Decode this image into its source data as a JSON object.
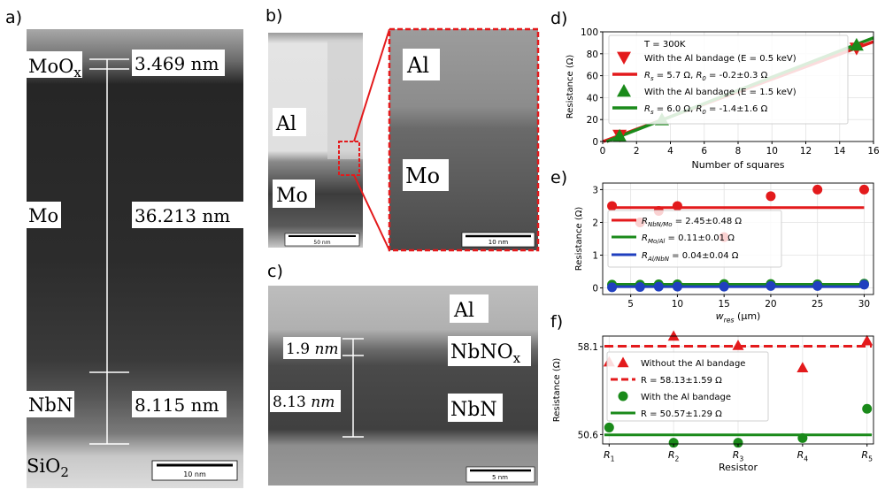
{
  "panels": {
    "a": {
      "label": "a)",
      "layers": [
        {
          "name": "MoO",
          "sub": "x",
          "thickness": "3.469 nm"
        },
        {
          "name": "Mo",
          "sub": "",
          "thickness": "36.213 nm"
        },
        {
          "name": "NbN",
          "sub": "",
          "thickness": "8.115 nm"
        }
      ],
      "substrate": {
        "name": "SiO",
        "sub": "2"
      },
      "scalebar": "10 nm"
    },
    "b": {
      "label": "b)",
      "left_labels": [
        "Al",
        "Mo"
      ],
      "left_scalebar": "50 nm",
      "inset_labels": [
        "Al",
        "Mo"
      ],
      "inset_scalebar": "10 nm"
    },
    "c": {
      "label": "c)",
      "labels": {
        "top": "Al",
        "middle": "NbNO",
        "middle_sub": "x",
        "bottom": "NbN"
      },
      "thick1_value": "1.9 ",
      "thick1_unit": "nm",
      "thick2_value": "8.13 ",
      "thick2_unit": "nm",
      "scalebar": "5 nm"
    }
  },
  "chart_data": [
    {
      "panel": "d)",
      "type": "line",
      "xlabel": "Number of squares",
      "ylabel": "Resistance (Ω)",
      "xlim": [
        0,
        16
      ],
      "ylim": [
        0,
        100
      ],
      "xticks": [
        0,
        2,
        4,
        6,
        8,
        10,
        12,
        14,
        16
      ],
      "yticks": [
        0,
        20,
        40,
        60,
        80,
        100
      ],
      "grid": true,
      "legend_position": "top-left",
      "legend_title": "T = 300K",
      "series": [
        {
          "name": "With the Al bandage (E = 0.5 keV)",
          "kind": "scatter",
          "marker": "triangle-down",
          "color": "#e31a1c",
          "x": [
            1,
            15
          ],
          "y": [
            5.5,
            85
          ]
        },
        {
          "name_prefix": "R",
          "name_sub": "s",
          "name_suffix": " = 5.7 Ω, ",
          "name_prefix2": "R",
          "name_sub2": "0",
          "name_suffix2": " = -0.2±0.3 Ω",
          "kind": "line",
          "color": "#e31a1c",
          "slope": 5.7,
          "intercept": -0.2,
          "x_range": [
            0,
            16
          ]
        },
        {
          "name": "With the Al bandage (E = 1.5 keV)",
          "kind": "scatter",
          "marker": "triangle-up",
          "color": "#1a8a1a",
          "x": [
            1,
            3.5,
            15
          ],
          "y": [
            5,
            20,
            88
          ]
        },
        {
          "name_prefix": "R",
          "name_sub": "s",
          "name_suffix": " = 6.0 Ω, ",
          "name_prefix2": "R",
          "name_sub2": "0",
          "name_suffix2": " = -1.4±1.6 Ω",
          "kind": "line",
          "color": "#1a8a1a",
          "slope": 6.0,
          "intercept": -1.4,
          "x_range": [
            0,
            16
          ]
        }
      ]
    },
    {
      "panel": "e)",
      "type": "scatter",
      "xlabel_prefix": "w",
      "xlabel_sub": "res",
      "xlabel_suffix": " (μm)",
      "ylabel": "Resistance (Ω)",
      "xlim": [
        2,
        31
      ],
      "ylim": [
        -0.2,
        3.2
      ],
      "xticks": [
        5,
        10,
        15,
        20,
        25,
        30
      ],
      "yticks": [
        0,
        1,
        2,
        3
      ],
      "grid": true,
      "legend_position": "center-left",
      "series": [
        {
          "name_prefix": "R",
          "name_sub": "NbN/Mo",
          "name_suffix": " = 2.45±0.48 Ω",
          "color": "#e31a1c",
          "x": [
            3,
            6,
            8,
            10,
            15,
            20,
            25,
            30
          ],
          "y": [
            2.5,
            2.0,
            2.35,
            2.5,
            1.55,
            2.8,
            3.0,
            3.0
          ],
          "fit": 2.45
        },
        {
          "name_prefix": "R",
          "name_sub": "Mo/Al",
          "name_suffix": " = 0.11±0.01 Ω",
          "color": "#1a8a1a",
          "x": [
            3,
            6,
            8,
            10,
            15,
            20,
            25,
            30
          ],
          "y": [
            0.1,
            0.1,
            0.11,
            0.11,
            0.12,
            0.12,
            0.11,
            0.13
          ],
          "fit": 0.11
        },
        {
          "name_prefix": "R",
          "name_sub": "Al/NbN",
          "name_suffix": " = 0.04±0.04 Ω",
          "color": "#1f3fbf",
          "x": [
            3,
            6,
            8,
            10,
            15,
            20,
            25,
            30
          ],
          "y": [
            0.02,
            0.03,
            0.04,
            0.04,
            0.04,
            0.06,
            0.06,
            0.1
          ],
          "fit": 0.04
        }
      ]
    },
    {
      "panel": "f)",
      "type": "scatter",
      "xlabel": "Resistor",
      "ylabel": "Resistance (Ω)",
      "categories_prefix": "R",
      "categories": [
        "1",
        "2",
        "3",
        "4",
        "5"
      ],
      "ylim": [
        49.8,
        59.0
      ],
      "yticks": [
        50.6,
        58.1
      ],
      "grid": true,
      "legend_position": "top-left",
      "series": [
        {
          "name": "Without the Al bandage",
          "marker": "triangle-up",
          "color": "#e31a1c",
          "values": [
            56.8,
            59.1,
            58.2,
            56.3,
            58.6
          ],
          "fit": 58.13
        },
        {
          "name": "R = 58.13±1.59 Ω",
          "kind": "dashed-line",
          "color": "#e31a1c"
        },
        {
          "name": "With the Al bandage",
          "marker": "circle",
          "color": "#1a8a1a",
          "values": [
            51.2,
            49.9,
            49.9,
            50.3,
            52.8
          ],
          "fit": 50.57
        },
        {
          "name": "R = 50.57±1.29 Ω",
          "kind": "line",
          "color": "#1a8a1a"
        }
      ]
    }
  ]
}
